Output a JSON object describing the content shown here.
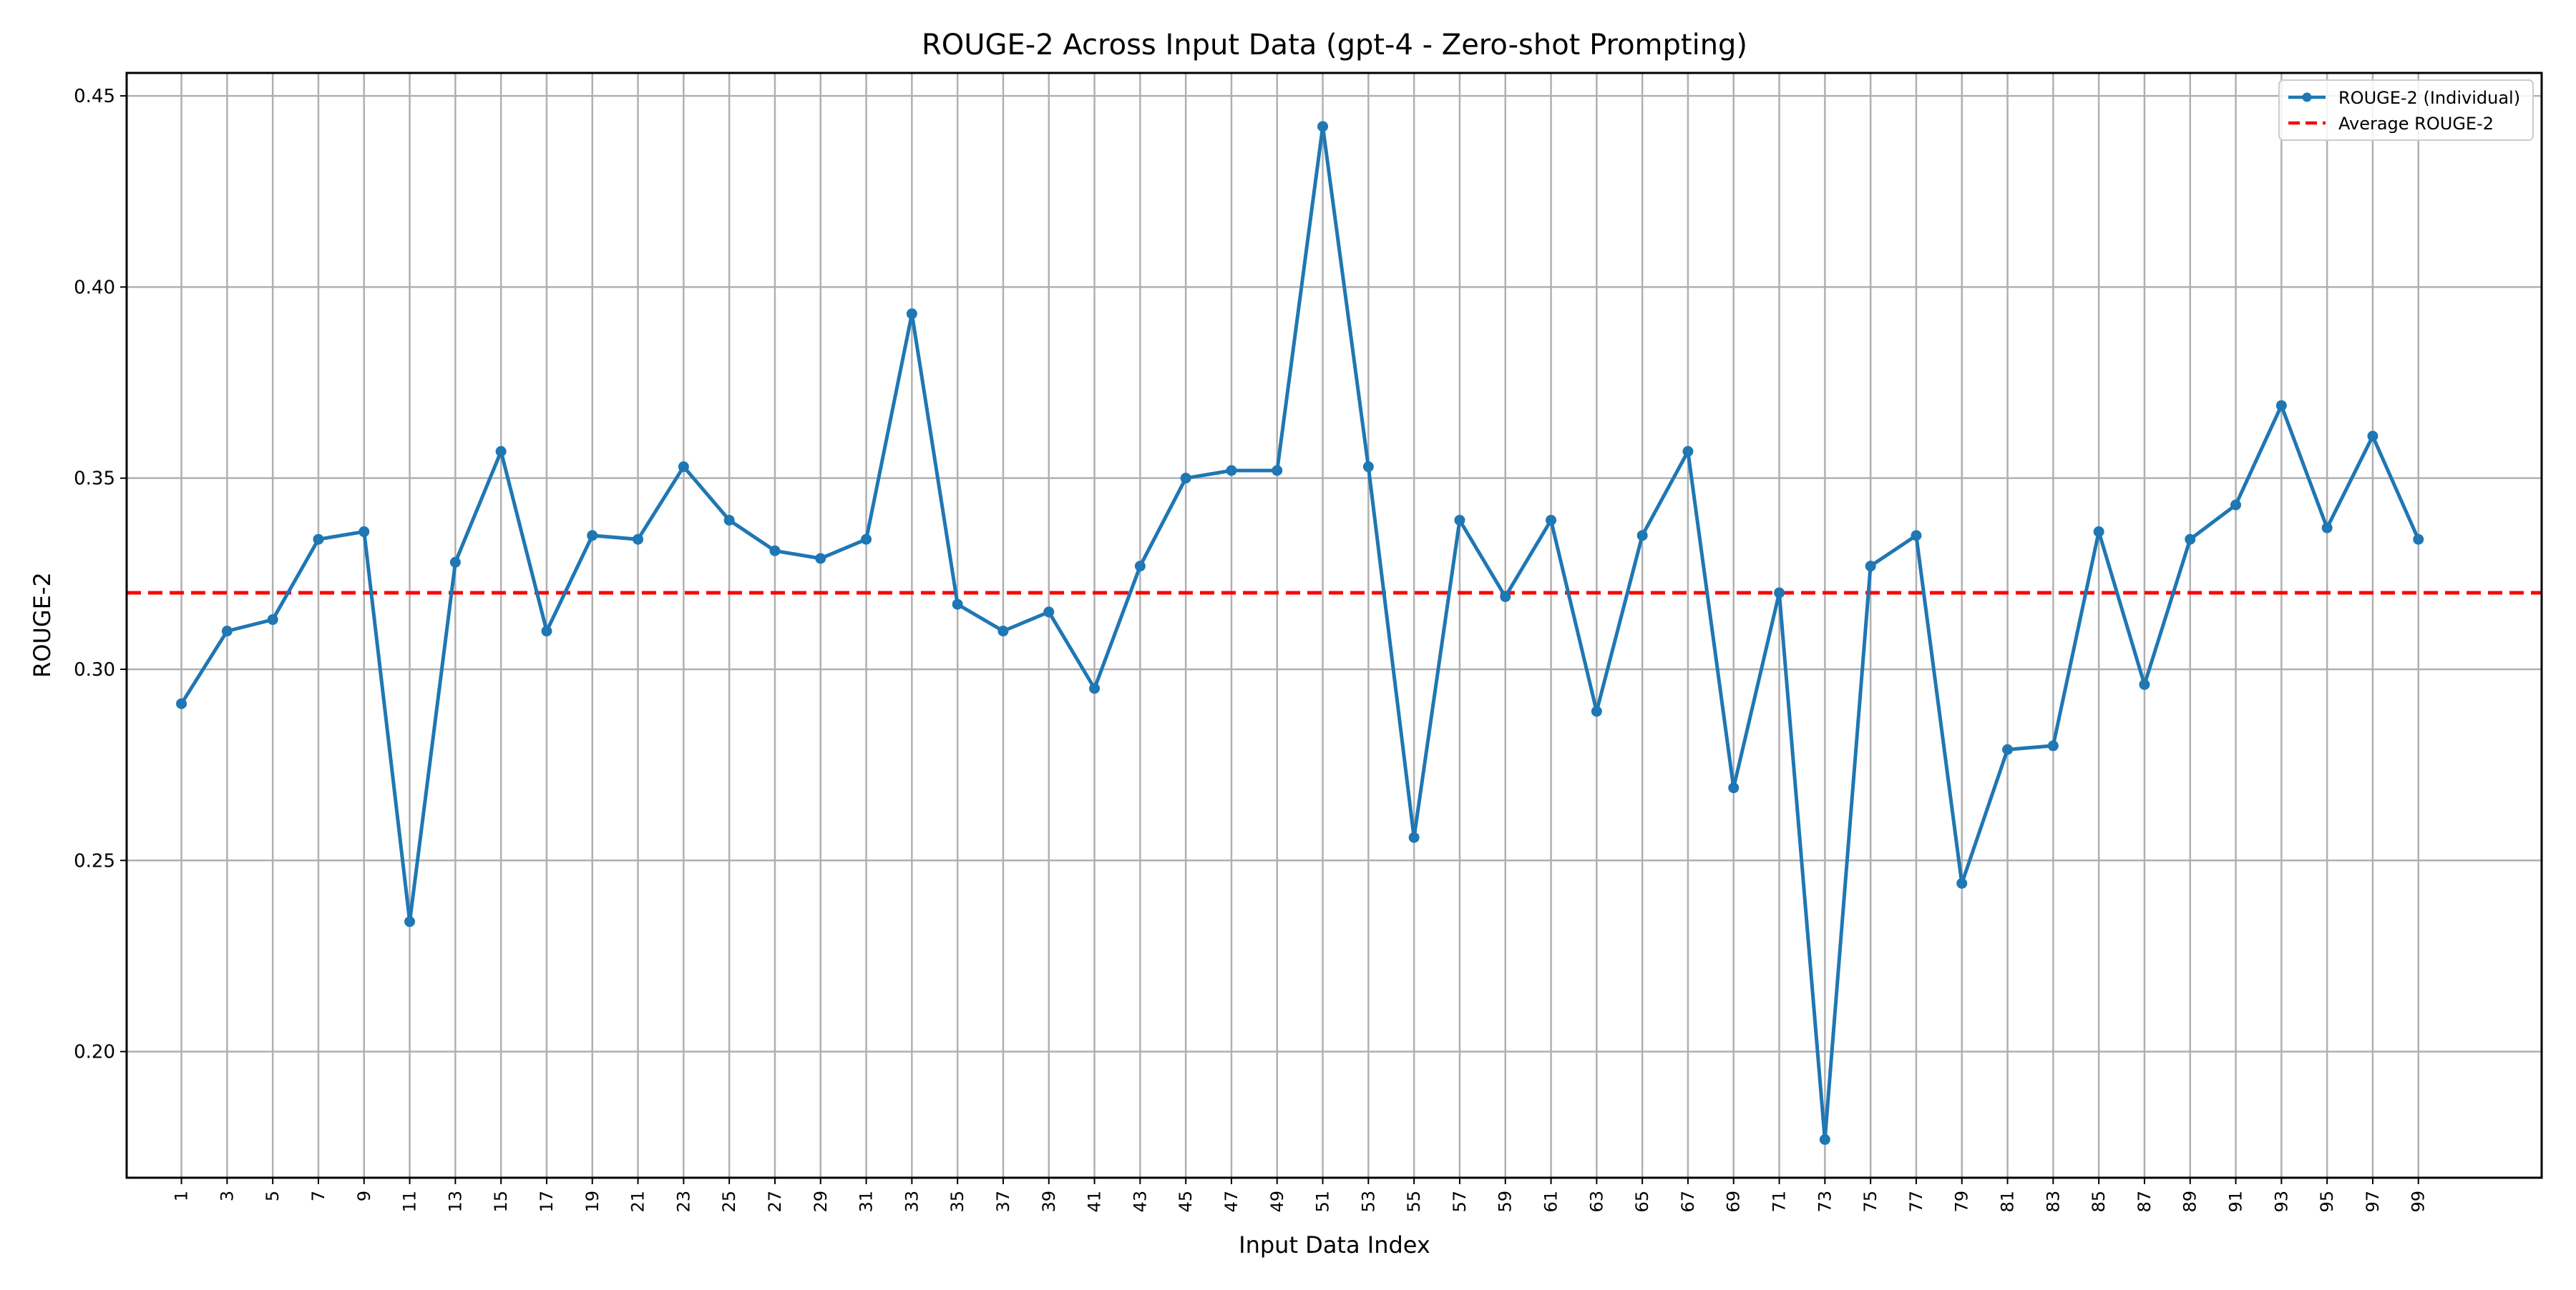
{
  "chart_data": {
    "type": "line",
    "title": "ROUGE-2 Across Input Data (gpt-4 - Zero-shot Prompting)",
    "xlabel": "Input Data Index",
    "ylabel": "ROUGE-2",
    "xlim": [
      -1.4,
      104.4
    ],
    "ylim": [
      0.167,
      0.456
    ],
    "xticks": [
      1,
      3,
      5,
      7,
      9,
      11,
      13,
      15,
      17,
      19,
      21,
      23,
      25,
      27,
      29,
      31,
      33,
      35,
      37,
      39,
      41,
      43,
      45,
      47,
      49,
      51,
      53,
      55,
      57,
      59,
      61,
      63,
      65,
      67,
      69,
      71,
      73,
      75,
      77,
      79,
      81,
      83,
      85,
      87,
      89,
      91,
      93,
      95,
      97,
      99
    ],
    "xtick_labels": [
      "1",
      "3",
      "5",
      "7",
      "9",
      "11",
      "13",
      "15",
      "17",
      "19",
      "21",
      "23",
      "25",
      "27",
      "29",
      "31",
      "33",
      "35",
      "37",
      "39",
      "41",
      "43",
      "45",
      "47",
      "49",
      "51",
      "53",
      "55",
      "57",
      "59",
      "61",
      "63",
      "65",
      "67",
      "69",
      "71",
      "73",
      "75",
      "77",
      "79",
      "81",
      "83",
      "85",
      "87",
      "89",
      "91",
      "93",
      "95",
      "97",
      "99"
    ],
    "yticks": [
      0.2,
      0.25,
      0.3,
      0.35,
      0.4,
      0.45
    ],
    "ytick_labels": [
      "0.20",
      "0.25",
      "0.30",
      "0.35",
      "0.40",
      "0.45"
    ],
    "grid": true,
    "legend_position": "top-right",
    "x": [
      1,
      3,
      5,
      7,
      9,
      11,
      13,
      15,
      17,
      19,
      21,
      23,
      25,
      27,
      29,
      31,
      33,
      35,
      37,
      39,
      41,
      43,
      45,
      47,
      49,
      51,
      53,
      55,
      57,
      59,
      61,
      63,
      65,
      67,
      69,
      71,
      73,
      75,
      77,
      79,
      81,
      83,
      85,
      87,
      89,
      91,
      93,
      95,
      97,
      99
    ],
    "series": [
      {
        "name": "ROUGE-2 (Individual)",
        "color": "#1f77b4",
        "style": "solid",
        "marker": "circle",
        "values": [
          0.291,
          0.31,
          0.313,
          0.334,
          0.336,
          0.234,
          0.328,
          0.357,
          0.31,
          0.335,
          0.334,
          0.353,
          0.339,
          0.331,
          0.329,
          0.334,
          0.393,
          0.317,
          0.31,
          0.315,
          0.295,
          0.327,
          0.35,
          0.352,
          0.352,
          0.442,
          0.353,
          0.256,
          0.339,
          0.319,
          0.339,
          0.289,
          0.335,
          0.357,
          0.269,
          0.32,
          0.177,
          0.327,
          0.335,
          0.244,
          0.279,
          0.28,
          0.336,
          0.296,
          0.334,
          0.343,
          0.369,
          0.337,
          0.361,
          0.334
        ]
      }
    ],
    "reference_lines": [
      {
        "name": "Average ROUGE-2",
        "y": 0.32,
        "color": "#ff0000",
        "style": "dashed"
      }
    ]
  }
}
